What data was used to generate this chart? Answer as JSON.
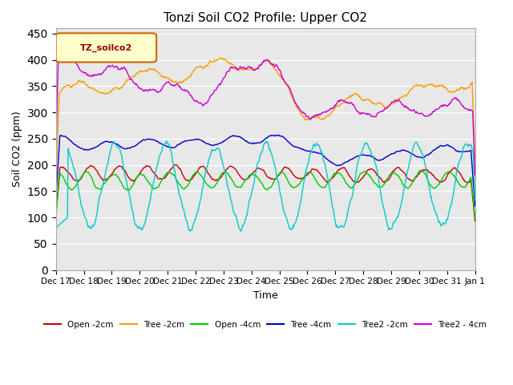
{
  "title": "Tonzi Soil CO2 Profile: Upper CO2",
  "ylabel": "Soil CO2 (ppm)",
  "xlabel": "Time",
  "ylim": [
    0,
    460
  ],
  "yticks": [
    0,
    50,
    100,
    150,
    200,
    250,
    300,
    350,
    400,
    450
  ],
  "legend_label": "TZ_soilco2",
  "colors": {
    "Open-2cm": "#cc0000",
    "Tree-2cm": "#ff9900",
    "Open-4cm": "#00cc00",
    "Tree-4cm": "#0000cc",
    "Tree2-2cm": "#00cccc",
    "Tree2-4cm": "#cc00cc"
  },
  "bg_color": "#e8e8e8",
  "plot_bg": "#f0f0f0"
}
